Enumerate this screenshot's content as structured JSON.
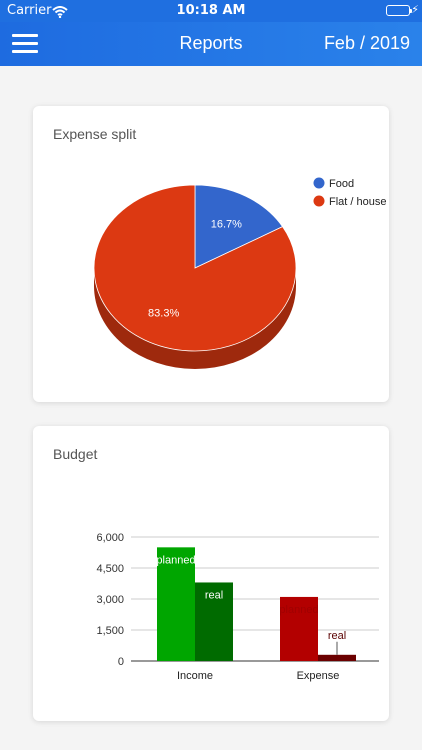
{
  "status": {
    "carrier": "Carrier",
    "time": "10:18 AM"
  },
  "header": {
    "title": "Reports",
    "period": "Feb / 2019"
  },
  "colors": {
    "accent": "#1f6fe0",
    "food": "#3366cc",
    "flat": "#dc3912",
    "income_planned": "#00a600",
    "income_real": "#006b00",
    "expense_planned": "#b30000",
    "expense_real": "#6b0000"
  },
  "pie_card": {
    "title": "Expense split"
  },
  "bar_card": {
    "title": "Budget"
  },
  "chart_data": [
    {
      "type": "pie",
      "title": "Expense split",
      "labels": [
        "Food",
        "Flat / house"
      ],
      "values": [
        16.7,
        83.3
      ],
      "slice_labels": [
        "16.7%",
        "83.3%"
      ],
      "legend_position": "right",
      "style": "3d"
    },
    {
      "type": "bar",
      "title": "Budget",
      "categories": [
        "Income",
        "Expense"
      ],
      "series": [
        {
          "name": "planned",
          "values": [
            5500,
            3100
          ]
        },
        {
          "name": "real",
          "values": [
            3800,
            300
          ]
        }
      ],
      "yticks": [
        "6,000",
        "4,500",
        "3,000",
        "1,500",
        "0"
      ],
      "ytick_values": [
        6000,
        4500,
        3000,
        1500,
        0
      ],
      "ylim": [
        0,
        6000
      ],
      "grid": true
    }
  ]
}
